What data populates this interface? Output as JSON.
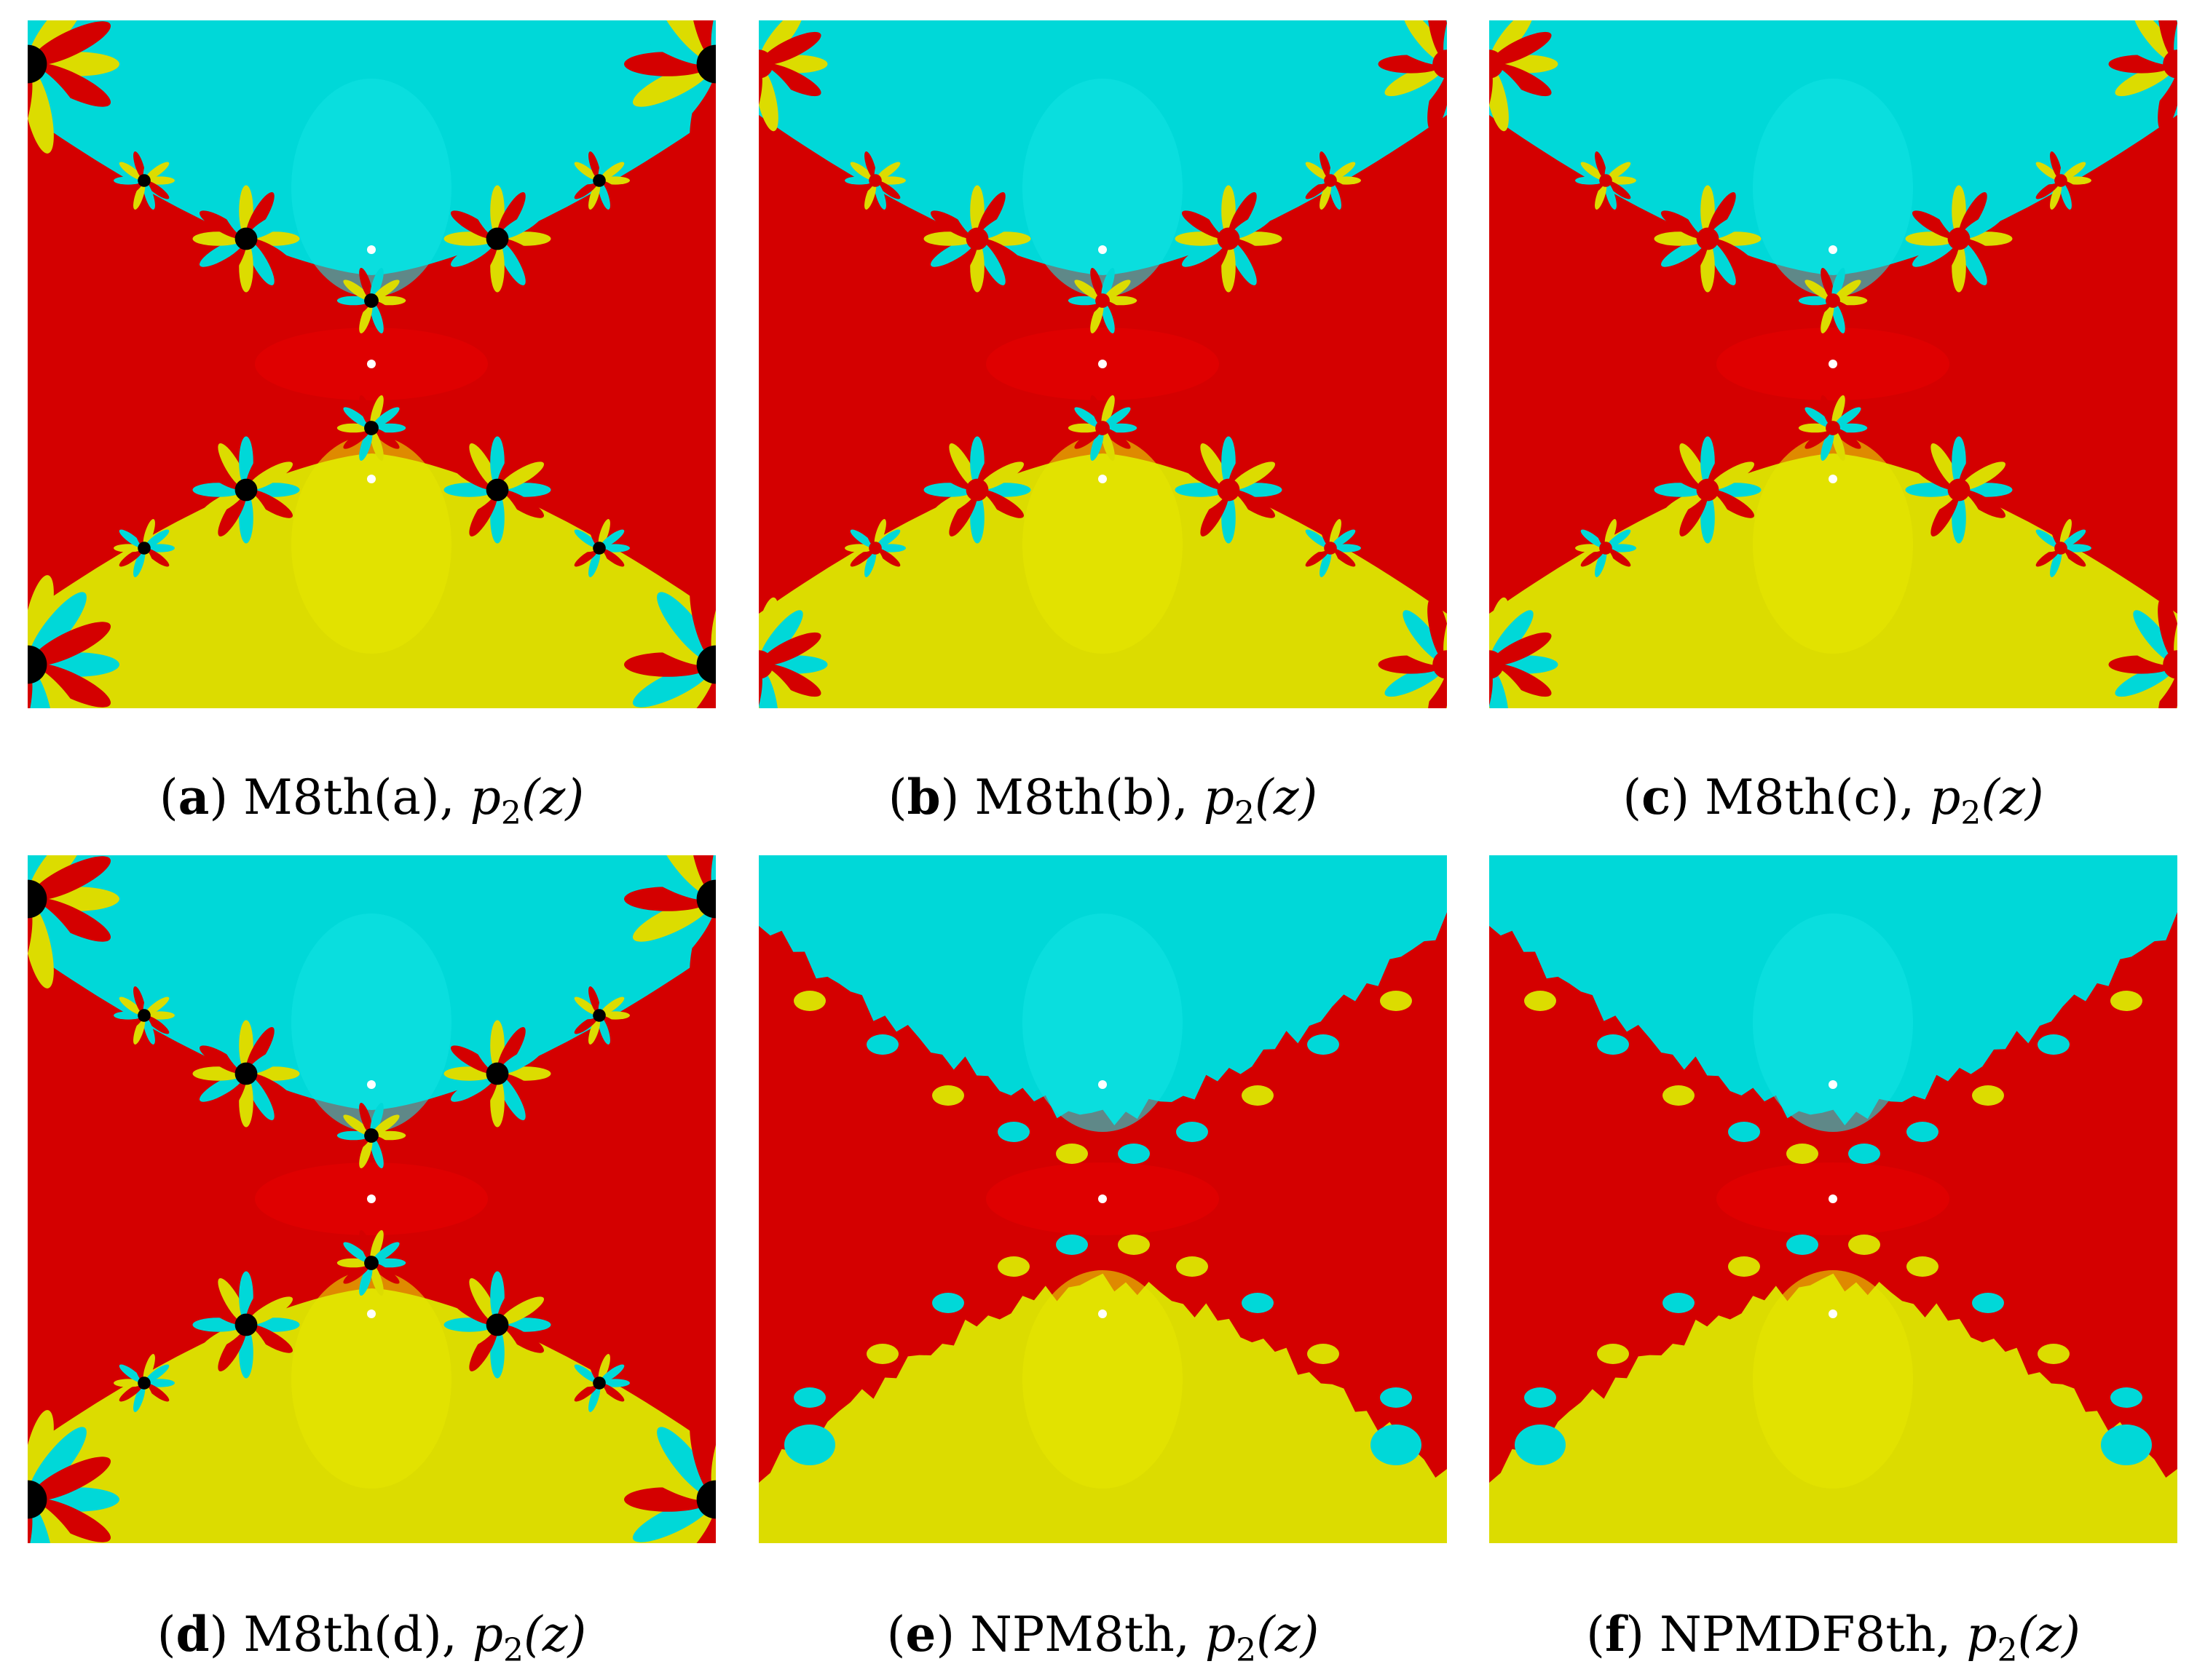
{
  "colors": {
    "cyan": "#00d8d8",
    "red": "#d40000",
    "yellow": "#dcdc00",
    "black": "#000000",
    "root": "#ffffff"
  },
  "panels": [
    {
      "letter": "a",
      "method": "M8th(a),",
      "style": "flowers-black"
    },
    {
      "letter": "b",
      "method": "M8th(b),",
      "style": "flowers-red"
    },
    {
      "letter": "c",
      "method": "M8th(c),",
      "style": "flowers-red"
    },
    {
      "letter": "d",
      "method": "M8th(d),",
      "style": "flowers-black"
    },
    {
      "letter": "e",
      "method": "NPM8th,",
      "style": "rough"
    },
    {
      "letter": "f",
      "method": "NPMDF8th,",
      "style": "rough"
    }
  ],
  "polynomial": {
    "var": "p",
    "sub": "2",
    "arg": "(z)"
  }
}
